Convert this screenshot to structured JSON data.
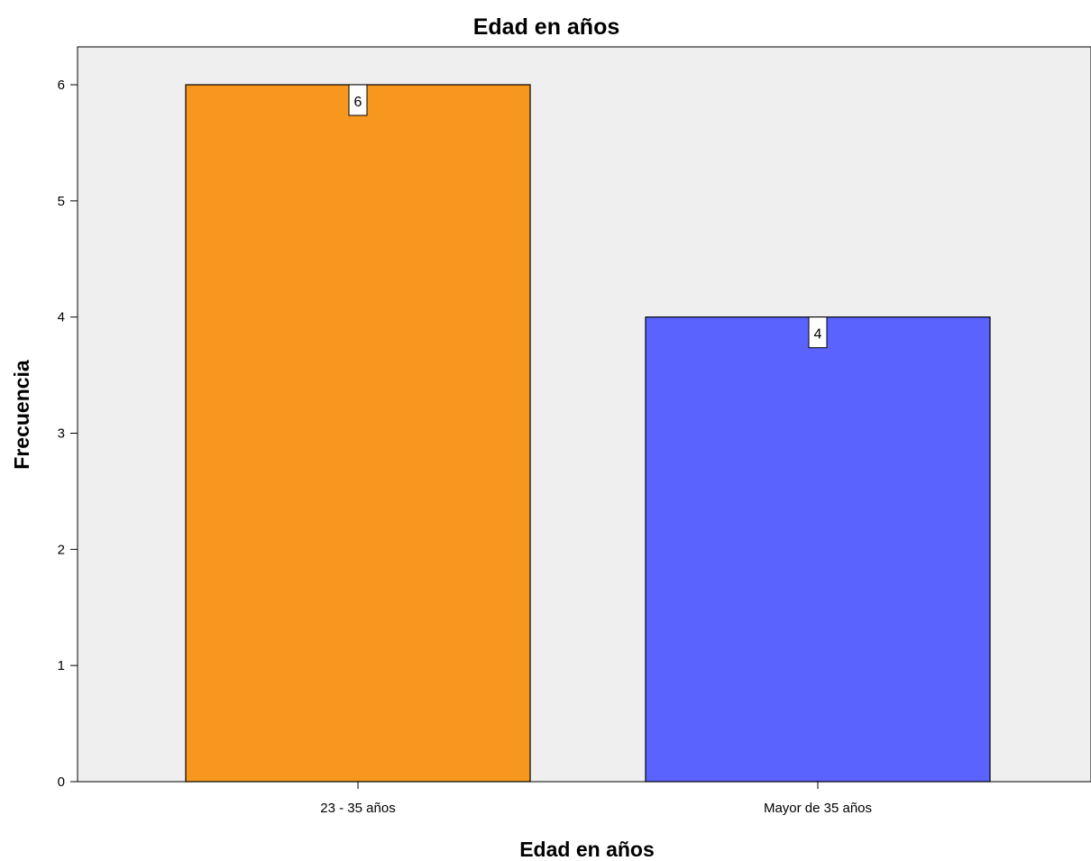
{
  "chart_data": {
    "type": "bar",
    "title": "Edad en años",
    "xlabel": "Edad en años",
    "ylabel": "Frecuencia",
    "categories": [
      "23 - 35 años",
      "Mayor de 35 años"
    ],
    "values": [
      6,
      4
    ],
    "data_labels": [
      "6",
      "4"
    ],
    "ylim": [
      0,
      6
    ],
    "yticks": [
      0,
      1,
      2,
      3,
      4,
      5,
      6
    ],
    "ytick_labels": [
      "0",
      "1",
      "2",
      "3",
      "4",
      "5",
      "6"
    ],
    "bar_colors": [
      "#F7971E",
      "#5B63FF"
    ],
    "plot_background": "#EFEFEF",
    "grid": false,
    "legend": "none"
  }
}
